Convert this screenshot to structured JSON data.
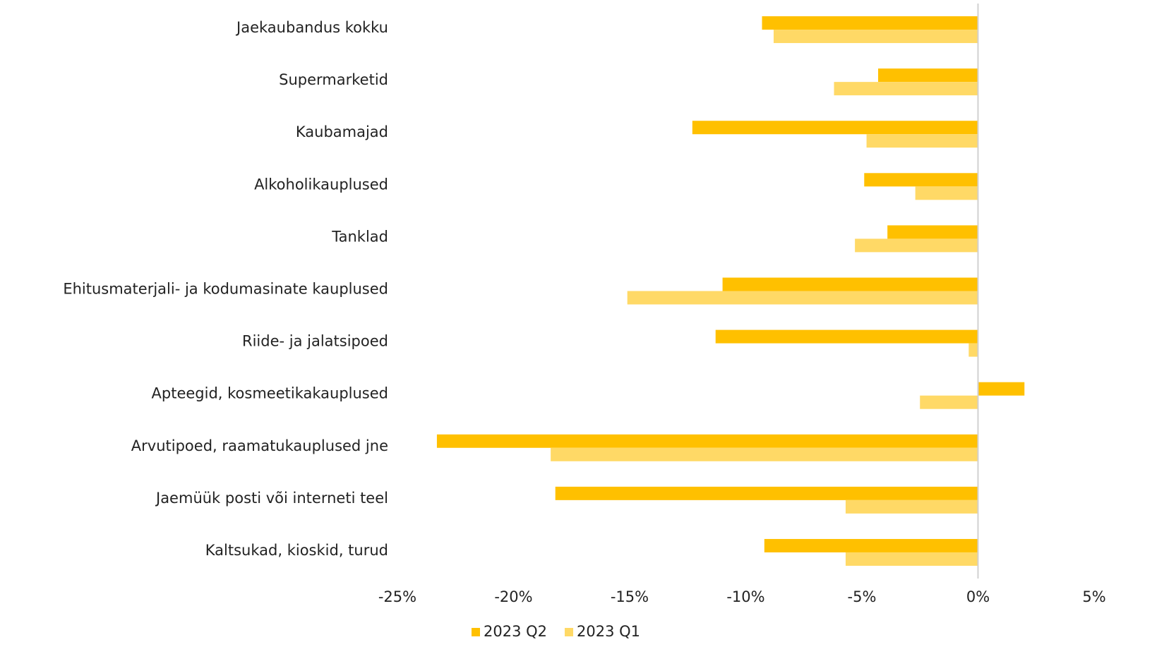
{
  "chart_data": {
    "type": "bar",
    "orientation": "horizontal",
    "categories": [
      "Jaekaubandus kokku",
      "Supermarketid",
      "Kaubamajad",
      "Alkoholikauplused",
      "Tanklad",
      "Ehitusmaterjali- ja kodumasinate kauplused",
      "Riide- ja jalatsipoed",
      "Apteegid, kosmeetikakauplused",
      "Arvutipoed, raamatukauplused jne",
      "Jaemüük posti või interneti teel",
      "Kaltsukad, kioskid, turud"
    ],
    "series": [
      {
        "name": "2023 Q2",
        "color": "#FFC000",
        "values": [
          -9.3,
          -4.3,
          -12.3,
          -4.9,
          -3.9,
          -11.0,
          -11.3,
          2.0,
          -23.3,
          -18.2,
          -9.2
        ]
      },
      {
        "name": "2023 Q1",
        "color": "#FFD966",
        "values": [
          -8.8,
          -6.2,
          -4.8,
          -2.7,
          -5.3,
          -15.1,
          -0.4,
          -2.5,
          -18.4,
          -5.7,
          -5.7
        ]
      }
    ],
    "xlim": [
      -25,
      5
    ],
    "xticks": [
      {
        "value": -25,
        "label": "-25%"
      },
      {
        "value": -20,
        "label": "-20%"
      },
      {
        "value": -15,
        "label": "-15%"
      },
      {
        "value": -10,
        "label": "-10%"
      },
      {
        "value": -5,
        "label": "-5%"
      },
      {
        "value": 0,
        "label": "0%"
      },
      {
        "value": 5,
        "label": "5%"
      }
    ],
    "legend": "bottom"
  }
}
